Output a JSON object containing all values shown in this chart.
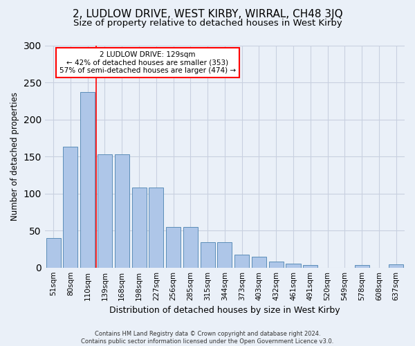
{
  "title": "2, LUDLOW DRIVE, WEST KIRBY, WIRRAL, CH48 3JQ",
  "subtitle": "Size of property relative to detached houses in West Kirby",
  "xlabel": "Distribution of detached houses by size in West Kirby",
  "ylabel": "Number of detached properties",
  "categories": [
    "51sqm",
    "80sqm",
    "110sqm",
    "139sqm",
    "168sqm",
    "198sqm",
    "227sqm",
    "256sqm",
    "285sqm",
    "315sqm",
    "344sqm",
    "373sqm",
    "403sqm",
    "432sqm",
    "461sqm",
    "491sqm",
    "520sqm",
    "549sqm",
    "578sqm",
    "608sqm",
    "637sqm"
  ],
  "values": [
    40,
    163,
    237,
    153,
    153,
    108,
    108,
    55,
    55,
    34,
    34,
    17,
    15,
    8,
    5,
    3,
    0,
    0,
    3,
    0,
    4
  ],
  "bar_color": "#aec6e8",
  "bar_edge_color": "#5b8db8",
  "bar_edge_width": 0.7,
  "grid_color": "#c8d0e0",
  "background_color": "#eaf0f8",
  "red_line_x": 2.5,
  "annotation_text": "2 LUDLOW DRIVE: 129sqm\n← 42% of detached houses are smaller (353)\n57% of semi-detached houses are larger (474) →",
  "annotation_box_color": "white",
  "annotation_box_edge": "red",
  "footer": "Contains HM Land Registry data © Crown copyright and database right 2024.\nContains public sector information licensed under the Open Government Licence v3.0.",
  "title_fontsize": 11,
  "subtitle_fontsize": 9.5,
  "xlabel_fontsize": 9,
  "ylabel_fontsize": 8.5,
  "tick_fontsize": 7.5,
  "annotation_fontsize": 7.5,
  "footer_fontsize": 6,
  "ylim": [
    0,
    300
  ]
}
